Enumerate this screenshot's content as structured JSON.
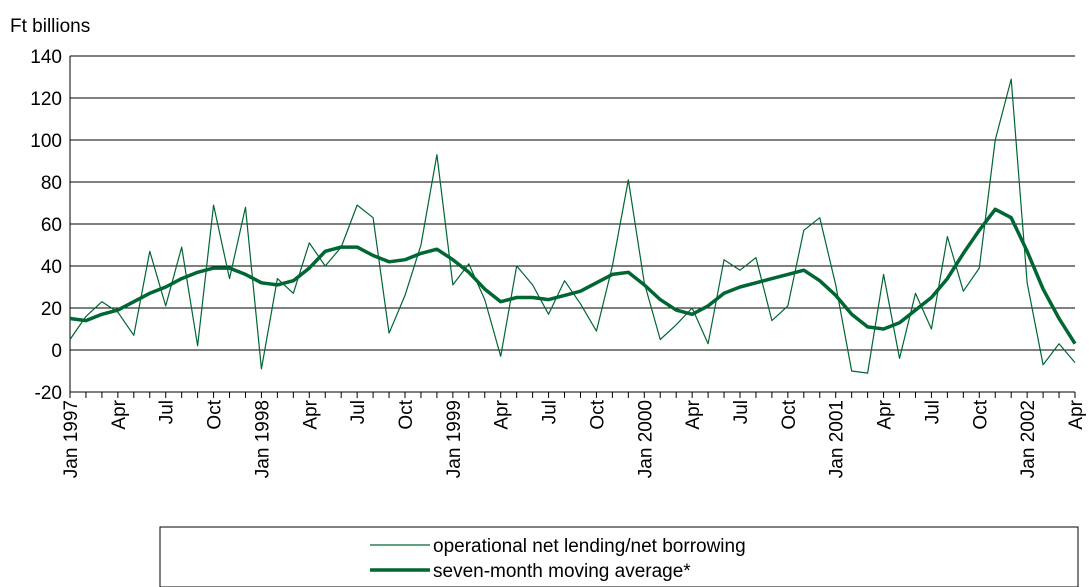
{
  "chart_data": {
    "type": "line",
    "y_axis_label": "Ft billions",
    "categories": [
      "Jan 1997",
      null,
      null,
      "Apr",
      null,
      null,
      "Jul",
      null,
      null,
      "Oct",
      null,
      null,
      "Jan 1998",
      null,
      null,
      "Apr",
      null,
      null,
      "Jul",
      null,
      null,
      "Oct",
      null,
      null,
      "Jan 1999",
      null,
      null,
      "Apr",
      null,
      null,
      "Jul",
      null,
      null,
      "Oct",
      null,
      null,
      "Jan 2000",
      null,
      null,
      "Apr",
      null,
      null,
      "Jul",
      null,
      null,
      "Oct",
      null,
      null,
      "Jan 2001",
      null,
      null,
      "Apr",
      null,
      null,
      "Jul",
      null,
      null,
      "Oct",
      null,
      null,
      "Jan 2002",
      null,
      null,
      "Apr"
    ],
    "series": [
      {
        "name": "operational net lending/net borrowing",
        "color": "#006633",
        "width": 1.2,
        "values": [
          5,
          16,
          23,
          18,
          7,
          47,
          21,
          49,
          2,
          69,
          34,
          68,
          -9,
          34,
          27,
          51,
          40,
          49,
          69,
          63,
          8,
          26,
          50,
          93,
          31,
          41,
          24,
          -3,
          40,
          31,
          17,
          33,
          22,
          9,
          40,
          81,
          32,
          5,
          12,
          20,
          3,
          43,
          38,
          44,
          14,
          21,
          57,
          63,
          31,
          -10,
          -11,
          36,
          -4,
          27,
          10,
          54,
          28,
          39,
          100,
          129,
          32,
          -7,
          3,
          -6
        ]
      },
      {
        "name": "seven-month moving average*",
        "color": "#006633",
        "width": 3.5,
        "values": [
          15,
          14,
          17,
          19,
          23,
          27,
          30,
          34,
          37,
          39,
          39,
          36,
          32,
          31,
          33,
          39,
          47,
          49,
          49,
          45,
          42,
          43,
          46,
          48,
          43,
          37,
          29,
          23,
          25,
          25,
          24,
          26,
          28,
          32,
          36,
          37,
          31,
          24,
          19,
          17,
          21,
          27,
          30,
          32,
          34,
          36,
          38,
          33,
          26,
          17,
          11,
          10,
          13,
          19,
          25,
          34,
          46,
          57,
          67,
          63,
          47,
          29,
          15,
          3
        ]
      }
    ],
    "ylim": [
      -20,
      140
    ],
    "yticks": [
      -20,
      0,
      20,
      40,
      60,
      80,
      100,
      120,
      140
    ],
    "grid": true
  }
}
